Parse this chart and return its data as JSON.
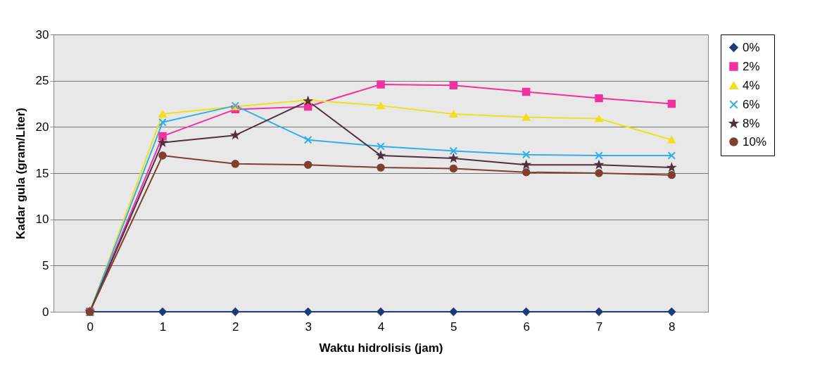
{
  "chart_data": {
    "type": "line",
    "xlabel": "Waktu hidrolisis (jam)",
    "ylabel": "Kadar gula (gram/Liter)",
    "x": [
      0,
      1,
      2,
      3,
      4,
      5,
      6,
      7,
      8
    ],
    "series": [
      {
        "name": "0%",
        "color": "#1f3a78",
        "marker": "diamond",
        "values": [
          0,
          0,
          0,
          0,
          0,
          0,
          0,
          0,
          0
        ]
      },
      {
        "name": "2%",
        "color": "#f032a0",
        "marker": "square",
        "values": [
          0,
          19.0,
          21.9,
          22.2,
          24.6,
          24.5,
          23.8,
          23.1,
          22.5
        ]
      },
      {
        "name": "4%",
        "color": "#f0e020",
        "marker": "triangle",
        "values": [
          0,
          21.4,
          22.2,
          22.9,
          22.3,
          21.4,
          21.05,
          20.9,
          18.6
        ]
      },
      {
        "name": "6%",
        "color": "#30b0e8",
        "marker": "cross",
        "values": [
          0,
          20.5,
          22.3,
          18.6,
          17.9,
          17.4,
          17.0,
          16.9,
          16.9
        ]
      },
      {
        "name": "8%",
        "color": "#503040",
        "marker": "star",
        "values": [
          0,
          18.3,
          19.1,
          22.8,
          16.9,
          16.6,
          15.9,
          15.9,
          15.6
        ]
      },
      {
        "name": "10%",
        "color": "#804030",
        "marker": "circle",
        "values": [
          0,
          16.9,
          16.0,
          15.9,
          15.6,
          15.5,
          15.1,
          15.0,
          14.8
        ]
      }
    ],
    "xlim": [
      -0.5,
      8.5
    ],
    "xticks": [
      0,
      1,
      2,
      3,
      4,
      5,
      6,
      7,
      8
    ],
    "ylim": [
      0,
      30
    ],
    "yticks": [
      0,
      5,
      10,
      15,
      20,
      25,
      30
    ],
    "grid": "y",
    "legend": "right",
    "line_style": "solid"
  }
}
